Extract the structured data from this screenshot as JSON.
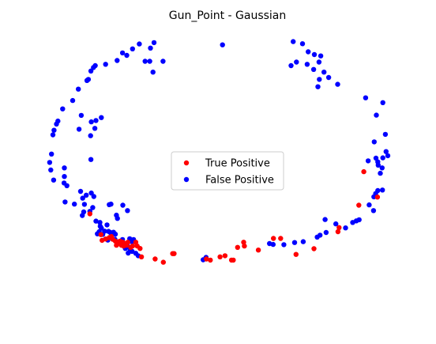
{
  "chart_data": {
    "type": "scatter",
    "title": "Gun_Point - Gaussian",
    "xlabel": "",
    "ylabel": "",
    "axes_visible": false,
    "grid": false,
    "legend_placement": "center",
    "xlim": [
      0,
      100
    ],
    "ylim": [
      0,
      100
    ],
    "series": [
      {
        "name": "True Positive",
        "color": "#ff0000",
        "points": [
          [
            87.8,
            49.4
          ],
          [
            80.9,
            28.7
          ],
          [
            80.6,
            27.2
          ],
          [
            73.9,
            20.9
          ],
          [
            68.9,
            18.8
          ],
          [
            64.6,
            24.7
          ],
          [
            62.6,
            24.7
          ],
          [
            58.4,
            20.4
          ],
          [
            54.5,
            21.9
          ],
          [
            54.3,
            23.3
          ],
          [
            52.6,
            21.4
          ],
          [
            51.4,
            16.7
          ],
          [
            50.9,
            16.7
          ],
          [
            49.1,
            18.3
          ],
          [
            47.7,
            17.9
          ],
          [
            45.0,
            16.7
          ],
          [
            43.9,
            17.1
          ],
          [
            34.9,
            19.1
          ],
          [
            34.5,
            19.1
          ],
          [
            31.9,
            15.9
          ],
          [
            29.6,
            17.1
          ],
          [
            25.8,
            17.9
          ],
          [
            25.4,
            21.0
          ],
          [
            24.6,
            21.9
          ],
          [
            24.2,
            23.3
          ],
          [
            23.3,
            21.9
          ],
          [
            22.8,
            21.4
          ],
          [
            22.0,
            23.3
          ],
          [
            21.6,
            22.2
          ],
          [
            21.2,
            22.8
          ],
          [
            20.8,
            21.9
          ],
          [
            20.6,
            23.3
          ],
          [
            20.2,
            22.2
          ],
          [
            19.8,
            23.7
          ],
          [
            19.2,
            22.8
          ],
          [
            18.8,
            22.2
          ],
          [
            18.5,
            23.7
          ],
          [
            17.8,
            24.4
          ],
          [
            17.4,
            25.4
          ],
          [
            16.8,
            25.0
          ],
          [
            15.8,
            24.5
          ],
          [
            14.8,
            24.0
          ],
          [
            14.5,
            26.1
          ],
          [
            11.4,
            33.8
          ],
          [
            86.4,
            37.0
          ],
          [
            91.6,
            40.0
          ]
        ]
      },
      {
        "name": "False Positive",
        "color": "#0000ff",
        "points": [
          [
            23.3,
            94.8
          ],
          [
            25.2,
            96.6
          ],
          [
            28.3,
            95.1
          ],
          [
            29.3,
            97.1
          ],
          [
            28.1,
            90.2
          ],
          [
            26.8,
            90.2
          ],
          [
            31.8,
            90.2
          ],
          [
            29.0,
            86.2
          ],
          [
            21.7,
            92.4
          ],
          [
            20.5,
            93.3
          ],
          [
            19.0,
            90.5
          ],
          [
            15.8,
            89.1
          ],
          [
            12.9,
            88.6
          ],
          [
            12.4,
            87.9
          ],
          [
            11.7,
            86.6
          ],
          [
            11.0,
            83.5
          ],
          [
            10.6,
            83.1
          ],
          [
            8.2,
            79.9
          ],
          [
            6.6,
            75.7
          ],
          [
            3.8,
            72.6
          ],
          [
            9.0,
            70.2
          ],
          [
            14.6,
            69.4
          ],
          [
            13.1,
            68.3
          ],
          [
            12.8,
            65.4
          ],
          [
            11.8,
            67.8
          ],
          [
            11.6,
            62.7
          ],
          [
            8.4,
            65.1
          ],
          [
            2.5,
            68.1
          ],
          [
            2.1,
            67.0
          ],
          [
            1.4,
            64.7
          ],
          [
            1.1,
            63.0
          ],
          [
            0.7,
            55.9
          ],
          [
            0.2,
            52.8
          ],
          [
            0.5,
            50.0
          ],
          [
            4.3,
            50.8
          ],
          [
            11.7,
            53.9
          ],
          [
            1.3,
            46.3
          ],
          [
            4.3,
            47.6
          ],
          [
            4.2,
            45.2
          ],
          [
            5.0,
            44.2
          ],
          [
            8.8,
            42.1
          ],
          [
            10.4,
            40.7
          ],
          [
            9.4,
            39.6
          ],
          [
            12.5,
            40.2
          ],
          [
            11.8,
            41.5
          ],
          [
            7.1,
            37.4
          ],
          [
            4.5,
            38.2
          ],
          [
            9.9,
            37.3
          ],
          [
            9.3,
            33.2
          ],
          [
            12.2,
            36.1
          ],
          [
            11.4,
            34.7
          ],
          [
            9.7,
            34.5
          ],
          [
            16.8,
            37.2
          ],
          [
            17.3,
            37.4
          ],
          [
            20.6,
            37.0
          ],
          [
            21.9,
            35.0
          ],
          [
            18.8,
            33.3
          ],
          [
            19.1,
            32.1
          ],
          [
            14.2,
            30.6
          ],
          [
            13.1,
            31.1
          ],
          [
            16.2,
            29.7
          ],
          [
            14.3,
            29.2
          ],
          [
            14.0,
            27.2
          ],
          [
            13.5,
            26.4
          ],
          [
            14.6,
            28.5
          ],
          [
            15.5,
            27.4
          ],
          [
            15.0,
            26.2
          ],
          [
            16.6,
            27.3
          ],
          [
            17.1,
            26.9
          ],
          [
            18.0,
            27.0
          ],
          [
            18.5,
            26.3
          ],
          [
            16.4,
            24.1
          ],
          [
            18.4,
            24.4
          ],
          [
            19.0,
            23.4
          ],
          [
            20.0,
            22.8
          ],
          [
            20.5,
            24.3
          ],
          [
            21.0,
            22.1
          ],
          [
            21.9,
            23.0
          ],
          [
            22.5,
            24.6
          ],
          [
            23.1,
            23.5
          ],
          [
            23.6,
            24.3
          ],
          [
            22.2,
            21.5
          ],
          [
            21.3,
            21.0
          ],
          [
            22.6,
            20.0
          ],
          [
            22.1,
            19.3
          ],
          [
            23.2,
            19.9
          ],
          [
            24.2,
            19.2
          ],
          [
            24.9,
            18.3
          ],
          [
            43.0,
            16.8
          ],
          [
            43.8,
            17.7
          ],
          [
            61.5,
            22.8
          ],
          [
            62.5,
            22.5
          ],
          [
            65.5,
            22.4
          ],
          [
            68.5,
            23.2
          ],
          [
            70.9,
            23.5
          ],
          [
            74.8,
            25.2
          ],
          [
            75.6,
            25.9
          ],
          [
            77.3,
            26.9
          ],
          [
            77.0,
            31.7
          ],
          [
            80.0,
            30.1
          ],
          [
            82.7,
            28.6
          ],
          [
            84.7,
            30.6
          ],
          [
            85.7,
            31.2
          ],
          [
            86.5,
            31.6
          ],
          [
            90.5,
            35.0
          ],
          [
            89.3,
            37.1
          ],
          [
            90.6,
            40.1
          ],
          [
            91.1,
            41.3
          ],
          [
            91.7,
            42.4
          ],
          [
            93.0,
            42.6
          ],
          [
            92.4,
            48.8
          ],
          [
            92.9,
            50.8
          ],
          [
            91.8,
            51.8
          ],
          [
            91.7,
            53.0
          ],
          [
            89.0,
            53.4
          ],
          [
            91.2,
            54.4
          ],
          [
            93.1,
            54.5
          ],
          [
            94.5,
            55.3
          ],
          [
            94.0,
            56.8
          ],
          [
            90.7,
            60.4
          ],
          [
            93.8,
            63.2
          ],
          [
            91.3,
            70.3
          ],
          [
            93.1,
            74.9
          ],
          [
            88.3,
            76.7
          ],
          [
            80.5,
            81.7
          ],
          [
            78.0,
            84.2
          ],
          [
            76.7,
            86.2
          ],
          [
            75.4,
            83.5
          ],
          [
            75.0,
            80.8
          ],
          [
            67.5,
            88.6
          ],
          [
            69.0,
            89.9
          ],
          [
            72.0,
            89.1
          ],
          [
            73.8,
            87.2
          ],
          [
            75.3,
            89.9
          ],
          [
            72.3,
            93.7
          ],
          [
            74.0,
            92.7
          ],
          [
            75.8,
            92.2
          ],
          [
            68.1,
            97.5
          ],
          [
            70.7,
            96.7
          ],
          [
            48.4,
            96.3
          ]
        ]
      }
    ]
  },
  "legend": {
    "true_label": "True Positive",
    "false_label": "False Positive"
  }
}
